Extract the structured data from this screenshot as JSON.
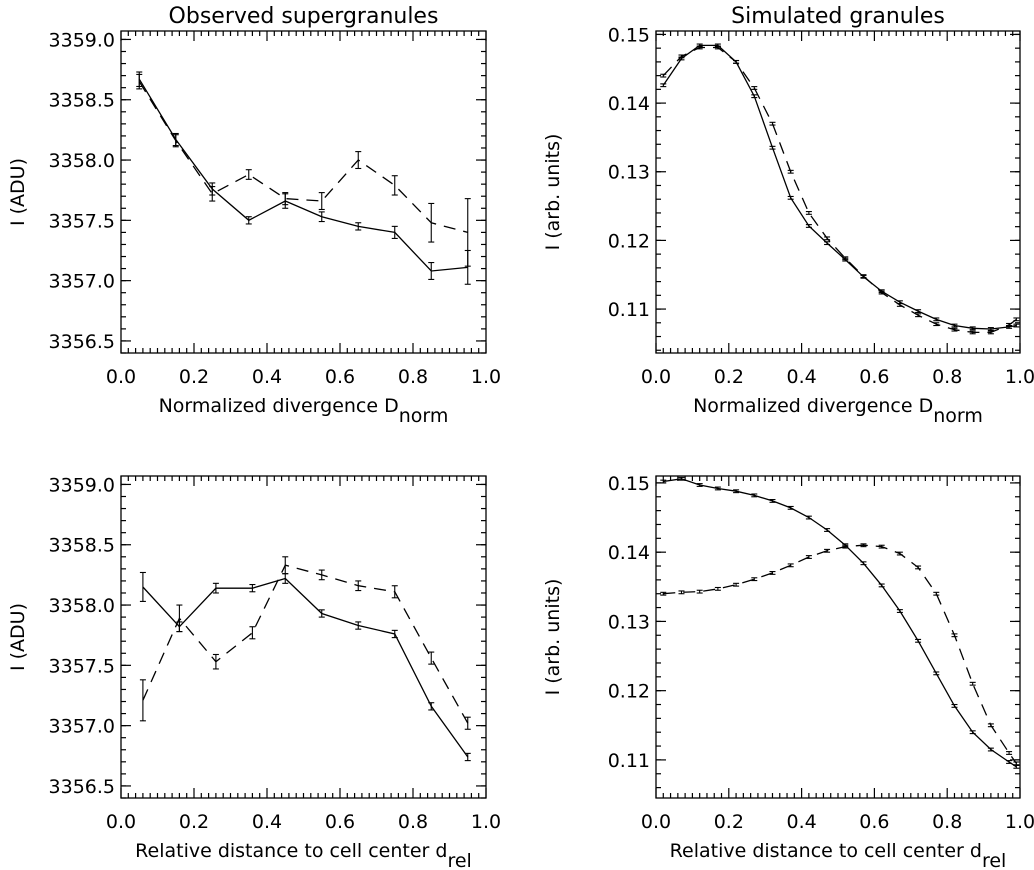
{
  "chart_data": [
    {
      "type": "line",
      "title": "Observed supergranules",
      "xlabel": "Normalized divergence D",
      "xlabel_sub": "norm",
      "ylabel": "I (ADU)",
      "xlim": [
        0,
        1
      ],
      "ylim": [
        3356.4,
        3359.07
      ],
      "xticks": [
        "0.0",
        "0.2",
        "0.4",
        "0.6",
        "0.8",
        "1.0"
      ],
      "yticks": [
        "3356.5",
        "3357.0",
        "3357.5",
        "3358.0",
        "3358.5",
        "3359.0"
      ],
      "series": [
        {
          "style": "solid",
          "x": [
            0.05,
            0.15,
            0.25,
            0.35,
            0.45,
            0.55,
            0.65,
            0.75,
            0.85,
            0.95
          ],
          "y": [
            3358.67,
            3358.17,
            3357.76,
            3357.5,
            3357.66,
            3357.53,
            3357.45,
            3357.4,
            3357.08,
            3357.11
          ],
          "err": [
            0.06,
            0.05,
            0.05,
            0.03,
            0.06,
            0.04,
            0.03,
            0.05,
            0.07,
            0.14
          ]
        },
        {
          "style": "dashed",
          "x": [
            0.05,
            0.15,
            0.25,
            0.35,
            0.45,
            0.55,
            0.65,
            0.75,
            0.85,
            0.95
          ],
          "y": [
            3358.65,
            3358.16,
            3357.72,
            3357.88,
            3357.68,
            3357.66,
            3358.0,
            3357.79,
            3357.48,
            3357.4
          ],
          "err": [
            0.06,
            0.05,
            0.06,
            0.04,
            0.05,
            0.07,
            0.07,
            0.08,
            0.16,
            0.28
          ]
        }
      ]
    },
    {
      "type": "line",
      "title": "Simulated granules",
      "xlabel": "Normalized divergence D",
      "xlabel_sub": "norm",
      "ylabel": "I (arb. units)",
      "xlim": [
        0,
        1
      ],
      "ylim": [
        0.1036,
        0.1505
      ],
      "xticks": [
        "0.0",
        "0.2",
        "0.4",
        "0.6",
        "0.8",
        "1.0"
      ],
      "yticks": [
        "0.11",
        "0.12",
        "0.13",
        "0.14",
        "0.15"
      ],
      "series": [
        {
          "style": "solid",
          "x": [
            0.02,
            0.07,
            0.12,
            0.17,
            0.22,
            0.27,
            0.32,
            0.37,
            0.42,
            0.47,
            0.52,
            0.57,
            0.62,
            0.67,
            0.72,
            0.77,
            0.82,
            0.87,
            0.92,
            0.97,
            0.99
          ],
          "y": [
            0.1426,
            0.1465,
            0.1484,
            0.1484,
            0.146,
            0.141,
            0.1335,
            0.1262,
            0.1221,
            0.1196,
            0.1172,
            0.1147,
            0.1126,
            0.111,
            0.1097,
            0.1085,
            0.1076,
            0.1072,
            0.1071,
            0.1074,
            0.1076
          ],
          "err": [
            0.0002,
            0.0002,
            0.0002,
            0.0002,
            0.0002,
            0.0002,
            0.0002,
            0.0002,
            0.0002,
            0.0002,
            0.0002,
            0.0002,
            0.0002,
            0.0002,
            0.0002,
            0.0002,
            0.0002,
            0.0002,
            0.0002,
            0.0002,
            0.0002
          ]
        },
        {
          "style": "dashed",
          "x": [
            0.02,
            0.07,
            0.12,
            0.17,
            0.22,
            0.27,
            0.32,
            0.37,
            0.42,
            0.47,
            0.52,
            0.57,
            0.62,
            0.67,
            0.72,
            0.77,
            0.82,
            0.87,
            0.92,
            0.97,
            0.99
          ],
          "y": [
            0.144,
            0.1468,
            0.1481,
            0.1481,
            0.146,
            0.1422,
            0.137,
            0.13,
            0.124,
            0.1203,
            0.1174,
            0.1148,
            0.1124,
            0.1106,
            0.1091,
            0.1078,
            0.107,
            0.1066,
            0.1066,
            0.1077,
            0.1085
          ],
          "err": [
            0.0002,
            0.0002,
            0.0002,
            0.0002,
            0.0002,
            0.0002,
            0.0002,
            0.0002,
            0.0002,
            0.0002,
            0.0002,
            0.0002,
            0.0002,
            0.0002,
            0.0002,
            0.0002,
            0.0002,
            0.0002,
            0.0002,
            0.0002,
            0.0002
          ]
        }
      ]
    },
    {
      "type": "line",
      "title": "",
      "xlabel": "Relative distance to cell center d",
      "xlabel_sub": "rel",
      "ylabel": "I (ADU)",
      "xlim": [
        0,
        1
      ],
      "ylim": [
        3356.4,
        3359.07
      ],
      "xticks": [
        "0.0",
        "0.2",
        "0.4",
        "0.6",
        "0.8",
        "1.0"
      ],
      "yticks": [
        "3356.5",
        "3357.0",
        "3357.5",
        "3358.0",
        "3358.5",
        "3359.0"
      ],
      "series": [
        {
          "style": "solid",
          "x": [
            0.06,
            0.16,
            0.26,
            0.36,
            0.45,
            0.55,
            0.65,
            0.75,
            0.85,
            0.95
          ],
          "y": [
            3358.15,
            3357.82,
            3358.14,
            3358.14,
            3358.22,
            3357.93,
            3357.83,
            3357.76,
            3357.16,
            3356.74
          ],
          "err": [
            0.12,
            0.04,
            0.04,
            0.03,
            0.04,
            0.03,
            0.03,
            0.03,
            0.03,
            0.03
          ]
        },
        {
          "style": "dashed",
          "x": [
            0.06,
            0.16,
            0.26,
            0.36,
            0.45,
            0.55,
            0.65,
            0.75,
            0.85,
            0.95
          ],
          "y": [
            3357.21,
            3357.89,
            3357.53,
            3357.77,
            3358.33,
            3358.25,
            3358.16,
            3358.11,
            3357.56,
            3357.02
          ],
          "err": [
            0.17,
            0.11,
            0.06,
            0.05,
            0.07,
            0.04,
            0.04,
            0.05,
            0.05,
            0.05
          ]
        }
      ]
    },
    {
      "type": "line",
      "title": "",
      "xlabel": "Relative distance to cell center d",
      "xlabel_sub": "rel",
      "ylabel": "I (arb. units)",
      "xlim": [
        0,
        1
      ],
      "ylim": [
        0.1045,
        0.151
      ],
      "xticks": [
        "0.0",
        "0.2",
        "0.4",
        "0.6",
        "0.8",
        "1.0"
      ],
      "yticks": [
        "0.11",
        "0.12",
        "0.13",
        "0.14",
        "0.15"
      ],
      "series": [
        {
          "style": "solid",
          "x": [
            0.02,
            0.07,
            0.12,
            0.17,
            0.22,
            0.27,
            0.32,
            0.37,
            0.42,
            0.47,
            0.52,
            0.57,
            0.62,
            0.67,
            0.72,
            0.77,
            0.82,
            0.87,
            0.92,
            0.97,
            0.99
          ],
          "y": [
            0.1502,
            0.1506,
            0.1497,
            0.1492,
            0.1488,
            0.1482,
            0.1474,
            0.1464,
            0.145,
            0.1432,
            0.141,
            0.1384,
            0.1352,
            0.1315,
            0.1272,
            0.1225,
            0.1178,
            0.114,
            0.1115,
            0.1097,
            0.109
          ],
          "err": [
            0.0002,
            0.0002,
            0.0002,
            0.0002,
            0.0002,
            0.0002,
            0.0002,
            0.0002,
            0.0002,
            0.0002,
            0.0002,
            0.0002,
            0.0002,
            0.0002,
            0.0002,
            0.0002,
            0.0002,
            0.0002,
            0.0002,
            0.0002,
            0.0002
          ]
        },
        {
          "style": "dashed",
          "x": [
            0.02,
            0.07,
            0.12,
            0.17,
            0.22,
            0.27,
            0.32,
            0.37,
            0.42,
            0.47,
            0.52,
            0.57,
            0.62,
            0.67,
            0.72,
            0.77,
            0.82,
            0.87,
            0.92,
            0.97,
            0.99
          ],
          "y": [
            0.134,
            0.1342,
            0.1343,
            0.1347,
            0.1353,
            0.1361,
            0.137,
            0.1381,
            0.1393,
            0.1402,
            0.1408,
            0.141,
            0.1408,
            0.1398,
            0.1378,
            0.134,
            0.128,
            0.121,
            0.115,
            0.111,
            0.1095
          ],
          "err": [
            0.0002,
            0.0002,
            0.0002,
            0.0002,
            0.0002,
            0.0002,
            0.0002,
            0.0002,
            0.0002,
            0.0002,
            0.0002,
            0.0002,
            0.0002,
            0.0002,
            0.0002,
            0.0002,
            0.0002,
            0.0002,
            0.0002,
            0.0002,
            0.0002
          ]
        }
      ]
    }
  ]
}
